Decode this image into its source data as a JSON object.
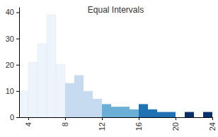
{
  "chart_data": {
    "type": "histogram",
    "title": "Equal Intervals",
    "bins": [
      3,
      4,
      5,
      6,
      7,
      8,
      9,
      10,
      11,
      12,
      13,
      14,
      15,
      16,
      17,
      18,
      19,
      20,
      21,
      22,
      23,
      24
    ],
    "values": [
      10,
      21,
      28,
      39,
      20,
      13,
      16,
      10,
      7,
      5,
      4,
      4,
      3,
      5,
      3,
      2,
      2,
      0,
      2,
      0,
      2
    ],
    "colors": [
      "#eef4fc",
      "#eef4fc",
      "#eef4fc",
      "#eef4fc",
      "#eef4fc",
      "#c6dbef",
      "#c6dbef",
      "#c6dbef",
      "#c6dbef",
      "#6baed6",
      "#6baed6",
      "#6baed6",
      "#6baed6",
      "#2171b5",
      "#2171b5",
      "#2171b5",
      "#2171b5",
      "#08306b",
      "#08306b",
      "#08306b",
      "#08306b"
    ],
    "xlim": [
      3,
      24
    ],
    "xticks": [
      4,
      8,
      12,
      16,
      20,
      24
    ],
    "ylim": [
      0,
      42
    ],
    "yticks": [
      0,
      10,
      20,
      30,
      40
    ],
    "grid": false
  }
}
